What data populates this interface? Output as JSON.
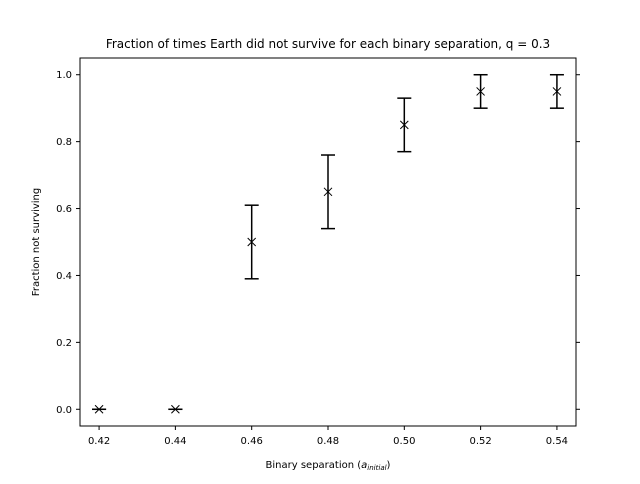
{
  "chart_data": {
    "type": "scatter",
    "title": "Fraction of times Earth did not survive for each binary separation, q = 0.3",
    "xlabel": {
      "main": "Binary separation (",
      "var": "a",
      "sub": "initial",
      "close": ")"
    },
    "ylabel": "Fraction not surviving",
    "xlim": [
      0.415,
      0.545
    ],
    "ylim": [
      -0.05,
      1.05
    ],
    "xticks": [
      {
        "value": 0.42,
        "label": "0.42"
      },
      {
        "value": 0.44,
        "label": "0.44"
      },
      {
        "value": 0.46,
        "label": "0.46"
      },
      {
        "value": 0.48,
        "label": "0.48"
      },
      {
        "value": 0.5,
        "label": "0.50"
      },
      {
        "value": 0.52,
        "label": "0.52"
      },
      {
        "value": 0.54,
        "label": "0.54"
      }
    ],
    "yticks": [
      {
        "value": 0.0,
        "label": "0.0"
      },
      {
        "value": 0.2,
        "label": "0.2"
      },
      {
        "value": 0.4,
        "label": "0.4"
      },
      {
        "value": 0.6,
        "label": "0.6"
      },
      {
        "value": 0.8,
        "label": "0.8"
      },
      {
        "value": 1.0,
        "label": "1.0"
      }
    ],
    "grid": false,
    "marker": "x",
    "color": "#000000",
    "points": [
      {
        "x": 0.42,
        "y": 0.0,
        "yerr_low": 0.0,
        "yerr_high": 0.0
      },
      {
        "x": 0.44,
        "y": 0.0,
        "yerr_low": 0.0,
        "yerr_high": 0.0
      },
      {
        "x": 0.46,
        "y": 0.5,
        "yerr_low": 0.39,
        "yerr_high": 0.61
      },
      {
        "x": 0.48,
        "y": 0.65,
        "yerr_low": 0.54,
        "yerr_high": 0.76
      },
      {
        "x": 0.5,
        "y": 0.85,
        "yerr_low": 0.77,
        "yerr_high": 0.93
      },
      {
        "x": 0.52,
        "y": 0.95,
        "yerr_low": 0.9,
        "yerr_high": 1.0
      },
      {
        "x": 0.54,
        "y": 0.95,
        "yerr_low": 0.9,
        "yerr_high": 1.0
      }
    ]
  }
}
